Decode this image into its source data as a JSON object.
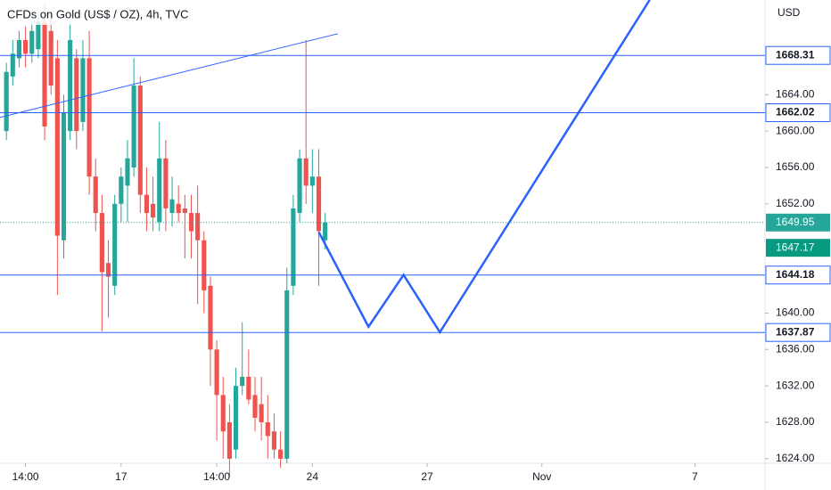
{
  "chart_data": {
    "type": "candlestick",
    "title": "CFDs on Gold (US$ / OZ), 4h, TVC",
    "y_axis_label": "USD",
    "up_color": "#26a69a",
    "down_color": "#ef5350",
    "line_color": "#2962ff",
    "x": [
      0,
      1,
      2,
      3,
      4,
      5,
      6,
      7,
      8,
      9,
      10,
      11,
      12,
      13,
      14,
      15,
      16,
      17,
      18,
      19,
      20,
      21,
      22,
      23,
      24,
      25,
      26,
      27,
      28,
      29,
      30,
      31,
      32,
      33,
      34,
      35,
      36,
      37,
      38,
      39,
      40,
      41,
      42,
      43,
      44,
      45,
      46,
      47,
      48,
      49,
      50
    ],
    "open": [
      1660,
      1666,
      1668,
      1670,
      1668.5,
      1669,
      1672,
      1671,
      1668,
      1648,
      1660,
      1668,
      1661,
      1668,
      1655,
      1651,
      1645.5,
      1643,
      1652,
      1654,
      1656,
      1665,
      1653,
      1652,
      1650,
      1657,
      1651,
      1652,
      1651.5,
      1651,
      1651,
      1648,
      1643,
      1636,
      1631,
      1628,
      1625,
      1632,
      1633,
      1631,
      1630,
      1628,
      1627,
      1625,
      1624,
      1643,
      1651,
      1657,
      1654,
      1655,
      1648
    ],
    "high": [
      1667.5,
      1670,
      1671,
      1671.5,
      1672,
      1673,
      1674,
      1673,
      1670,
      1664,
      1672,
      1669,
      1670,
      1671,
      1657,
      1653,
      1648,
      1653,
      1656,
      1659,
      1668,
      1666,
      1656,
      1655,
      1661,
      1659,
      1655,
      1654,
      1653,
      1653,
      1654,
      1649,
      1644,
      1637,
      1633,
      1630,
      1634,
      1639,
      1636,
      1633,
      1633,
      1631,
      1629,
      1627,
      1645,
      1653,
      1658,
      1670,
      1658,
      1658,
      1651
    ],
    "low": [
      1659,
      1665,
      1667,
      1667,
      1667.5,
      1668,
      1659,
      1664,
      1642,
      1646,
      1659,
      1658,
      1660,
      1653,
      1649,
      1638,
      1639.5,
      1642,
      1650,
      1650,
      1655,
      1651,
      1649,
      1649,
      1649,
      1649,
      1649.5,
      1650,
      1646,
      1646,
      1641,
      1640,
      1632,
      1626,
      1624,
      1622,
      1624,
      1631,
      1630,
      1627,
      1626,
      1624,
      1624,
      1623,
      1623.5,
      1642,
      1650,
      1652,
      1651,
      1643,
      1647
    ],
    "close": [
      1666.5,
      1668.5,
      1670,
      1668.5,
      1671,
      1672,
      1660.5,
      1665,
      1648.5,
      1662,
      1670,
      1660,
      1668,
      1655,
      1651,
      1644.5,
      1644,
      1652,
      1655,
      1657,
      1665,
      1653,
      1651,
      1650.5,
      1657,
      1651.5,
      1652.5,
      1651,
      1651,
      1649,
      1648,
      1642.5,
      1636,
      1631,
      1627,
      1624,
      1632,
      1633,
      1630.5,
      1628.5,
      1628,
      1626.5,
      1625,
      1624,
      1642.5,
      1651.5,
      1657,
      1654,
      1655,
      1649,
      1649.95
    ],
    "xlim": [
      -1,
      119
    ],
    "ylim": [
      1623.5,
      1674.4
    ],
    "xticks": [
      {
        "value": 3,
        "label": "14:00"
      },
      {
        "value": 18,
        "label": "17"
      },
      {
        "value": 33,
        "label": "14:00"
      },
      {
        "value": 48,
        "label": "24"
      },
      {
        "value": 66,
        "label": "27"
      },
      {
        "value": 84,
        "label": "Nov"
      },
      {
        "value": 108,
        "label": "7"
      }
    ],
    "yticks": [
      {
        "value": 1664,
        "label": "1664.00"
      },
      {
        "value": 1660,
        "label": "1660.00"
      },
      {
        "value": 1656,
        "label": "1656.00"
      },
      {
        "value": 1652,
        "label": "1652.00"
      },
      {
        "value": 1640,
        "label": "1640.00"
      },
      {
        "value": 1636,
        "label": "1636.00"
      },
      {
        "value": 1632,
        "label": "1632.00"
      },
      {
        "value": 1628,
        "label": "1628.00"
      },
      {
        "value": 1624,
        "label": "1624.00"
      }
    ],
    "levels": [
      1668.31,
      1662.02,
      1644.18,
      1637.87
    ],
    "last_price": 1649.95,
    "price_tag": 1647.17,
    "trendline": {
      "x": [
        -1,
        52
      ],
      "y": [
        1661.5,
        1670.7
      ]
    },
    "projection": {
      "x": [
        49,
        56.8,
        62.3,
        68,
        100.9
      ],
      "y": [
        1648.9,
        1638.5,
        1644.2,
        1637.9,
        1674.4
      ]
    }
  }
}
